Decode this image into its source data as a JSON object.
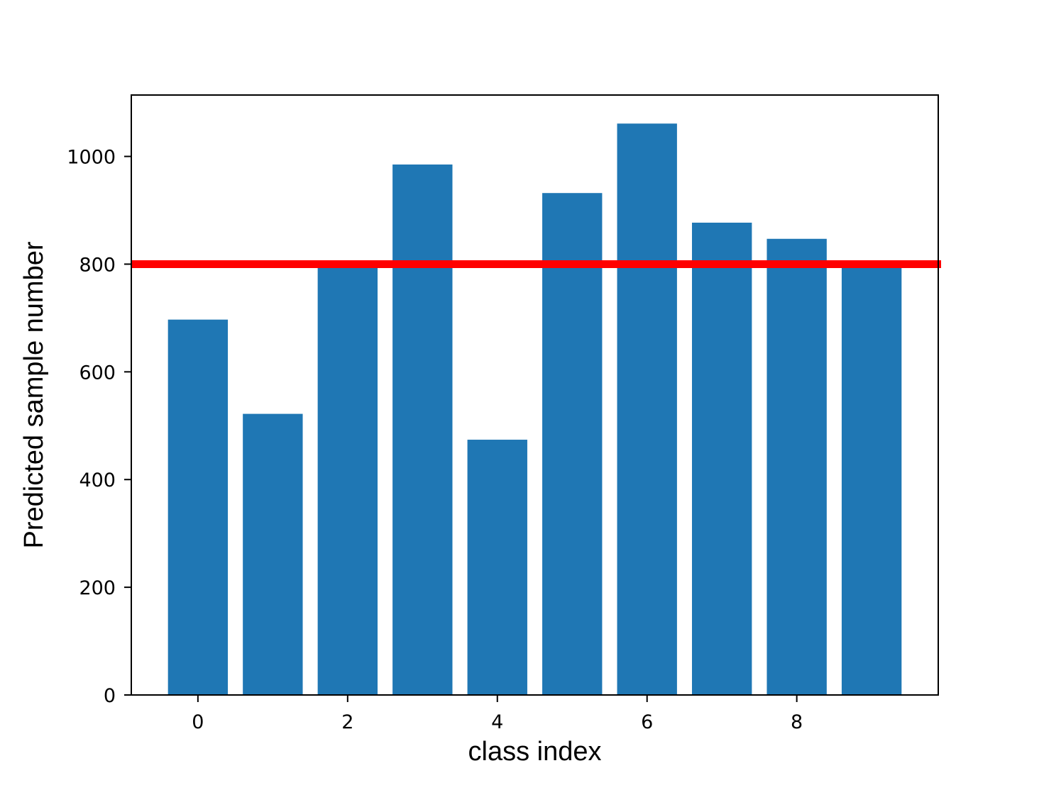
{
  "chart_data": {
    "type": "bar",
    "title": "",
    "xlabel": "class index",
    "ylabel": "Predicted sample number",
    "categories": [
      0,
      1,
      2,
      3,
      4,
      5,
      6,
      7,
      8,
      9
    ],
    "values": [
      697,
      522,
      800,
      985,
      474,
      932,
      1061,
      877,
      847,
      800
    ],
    "xlim": [
      -0.89,
      9.89
    ],
    "ylim": [
      0,
      1114
    ],
    "xticks": [
      0,
      2,
      4,
      6,
      8
    ],
    "yticks": [
      0,
      200,
      400,
      600,
      800,
      1000
    ],
    "xtick_labels": [
      "0",
      "2",
      "4",
      "6",
      "8"
    ],
    "ytick_labels": [
      "0",
      "200",
      "400",
      "600",
      "800",
      "1000"
    ],
    "bar_color": "#1f77b4",
    "reference_line": {
      "y": 800,
      "color": "#ff0000"
    },
    "grid": false,
    "legend": "none"
  }
}
